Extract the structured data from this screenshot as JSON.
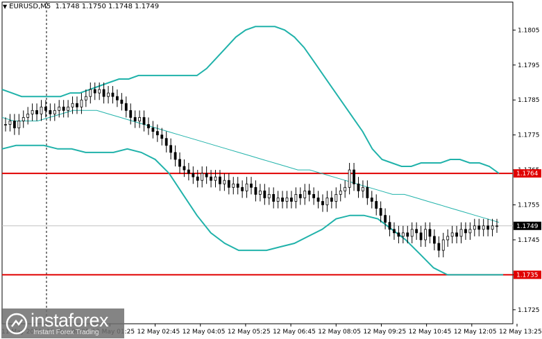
{
  "header": {
    "symbol": "EURUSD,M5",
    "ohlc": "1.1748 1.1750 1.1748 1.1749"
  },
  "watermark": {
    "name": "instaforex",
    "tagline": "Instant Forex Trading"
  },
  "colors": {
    "candle": "#000000",
    "bollinger": "#20b2aa",
    "level_line": "#e00000",
    "level_label_bg": "#e00000",
    "price_label_bg": "#000000",
    "price_line": "#c0c0c0",
    "axis": "#000000"
  },
  "chart_data": {
    "type": "candlestick",
    "symbol": "EURUSD",
    "timeframe": "M5",
    "ylim": [
      1.1721,
      1.1813
    ],
    "y_ticks": [
      "1.1805",
      "1.1795",
      "1.1785",
      "1.1775",
      "1.1765",
      "1.1755",
      "1.1745",
      "1.1735",
      "1.1725"
    ],
    "x_ticks": [
      "11 May 2021",
      "12 May 00:05",
      "12 May 01:25",
      "12 May 02:45",
      "12 May 04:05",
      "12 May 05:25",
      "12 May 06:45",
      "12 May 08:05",
      "12 May 09:25",
      "12 May 10:45",
      "12 May 12:05",
      "12 May 13:25"
    ],
    "current_price": 1.1749,
    "horizontal_levels": [
      {
        "label": "1.1764",
        "value": 1.1764
      },
      {
        "label": "1.1735",
        "value": 1.1735
      }
    ],
    "close_series": [
      1.1778,
      1.1779,
      1.1777,
      1.1779,
      1.178,
      1.1781,
      1.1782,
      1.1781,
      1.1783,
      1.1782,
      1.1781,
      1.1782,
      1.1783,
      1.1782,
      1.1783,
      1.1784,
      1.1783,
      1.1785,
      1.1786,
      1.1788,
      1.1787,
      1.1788,
      1.1786,
      1.1787,
      1.1786,
      1.1785,
      1.1784,
      1.1782,
      1.178,
      1.1779,
      1.178,
      1.1778,
      1.1777,
      1.1776,
      1.1775,
      1.1774,
      1.1772,
      1.177,
      1.1768,
      1.1766,
      1.1765,
      1.1764,
      1.1763,
      1.1762,
      1.1764,
      1.1763,
      1.1762,
      1.1763,
      1.1761,
      1.1762,
      1.176,
      1.1761,
      1.176,
      1.1759,
      1.1761,
      1.176,
      1.1758,
      1.1759,
      1.1757,
      1.1758,
      1.1756,
      1.1757,
      1.1756,
      1.1757,
      1.1756,
      1.1758,
      1.1757,
      1.1759,
      1.1758,
      1.1757,
      1.1756,
      1.1755,
      1.1757,
      1.1756,
      1.1758,
      1.1759,
      1.176,
      1.1765,
      1.1761,
      1.1759,
      1.176,
      1.1757,
      1.1756,
      1.1754,
      1.1752,
      1.175,
      1.1748,
      1.1747,
      1.1746,
      1.1747,
      1.1746,
      1.1748,
      1.1747,
      1.1745,
      1.1748,
      1.1746,
      1.1744,
      1.1742,
      1.1745,
      1.1746,
      1.1747,
      1.1746,
      1.1748,
      1.1747,
      1.1748,
      1.1749,
      1.1748,
      1.1749,
      1.1748,
      1.1749,
      1.1749
    ],
    "bollinger_upper": [
      1.1788,
      1.1787,
      1.1786,
      1.1786,
      1.1786,
      1.1786,
      1.1786,
      1.1787,
      1.1787,
      1.1788,
      1.1789,
      1.179,
      1.1791,
      1.1791,
      1.1792,
      1.1792,
      1.1792,
      1.1792,
      1.1792,
      1.1792,
      1.1792,
      1.1794,
      1.1797,
      1.18,
      1.1803,
      1.1805,
      1.1806,
      1.1806,
      1.1806,
      1.1805,
      1.1803,
      1.18,
      1.1796,
      1.1792,
      1.1788,
      1.1784,
      1.178,
      1.1776,
      1.1771,
      1.1768,
      1.1767,
      1.1766,
      1.1766,
      1.1767,
      1.1767,
      1.1767,
      1.1768,
      1.1768,
      1.1767,
      1.1767,
      1.1766,
      1.1764
    ],
    "bollinger_middle": [
      1.178,
      1.1779,
      1.1779,
      1.1779,
      1.178,
      1.1781,
      1.1782,
      1.1782,
      1.1782,
      1.1781,
      1.178,
      1.1779,
      1.1778,
      1.1777,
      1.1776,
      1.1775,
      1.1774,
      1.1773,
      1.1772,
      1.1771,
      1.177,
      1.1769,
      1.1768,
      1.1767,
      1.1766,
      1.1765,
      1.1765,
      1.1764,
      1.1763,
      1.1762,
      1.1761,
      1.176,
      1.1759,
      1.1758,
      1.1758,
      1.1757,
      1.1756,
      1.1755,
      1.1754,
      1.1753,
      1.1752,
      1.1751,
      1.175
    ],
    "bollinger_lower": [
      1.1771,
      1.1772,
      1.1772,
      1.1772,
      1.1771,
      1.1771,
      1.177,
      1.177,
      1.177,
      1.1771,
      1.177,
      1.1768,
      1.1764,
      1.1758,
      1.1752,
      1.1747,
      1.1744,
      1.1742,
      1.1742,
      1.1742,
      1.1743,
      1.1744,
      1.1746,
      1.1748,
      1.1751,
      1.1752,
      1.1752,
      1.1751,
      1.1748,
      1.1745,
      1.1741,
      1.1737,
      1.1735,
      1.1735,
      1.1735,
      1.1735,
      1.1735
    ]
  }
}
